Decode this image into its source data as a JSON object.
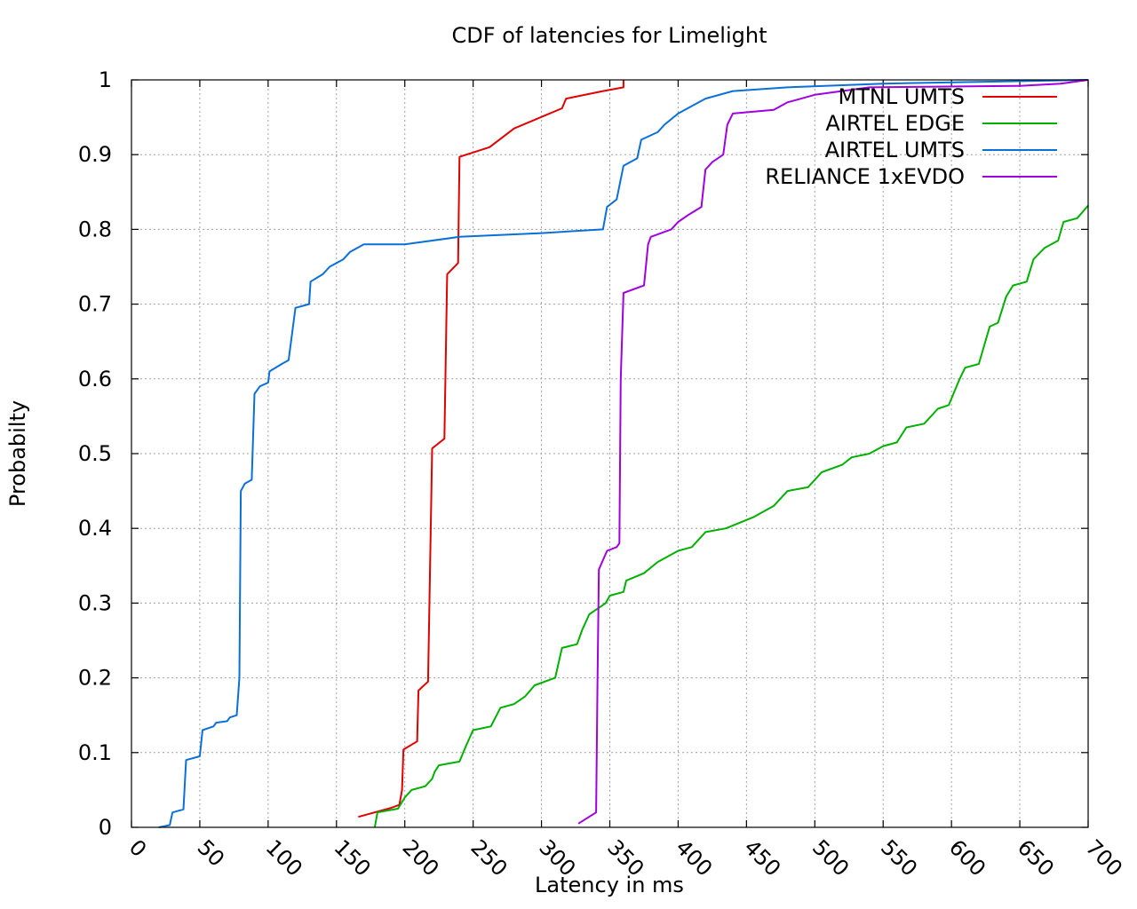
{
  "chart_data": {
    "type": "line",
    "title": "CDF of latencies for Limelight",
    "xlabel": "Latency in ms",
    "ylabel": "Probabilty",
    "xlim": [
      0,
      700
    ],
    "ylim": [
      0,
      1
    ],
    "xticks": [
      0,
      50,
      100,
      150,
      200,
      250,
      300,
      350,
      400,
      450,
      500,
      550,
      600,
      650,
      700
    ],
    "yticks": [
      0,
      0.1,
      0.2,
      0.3,
      0.4,
      0.5,
      0.6,
      0.7,
      0.8,
      0.9,
      1
    ],
    "xtick_labels": [
      "0",
      "50",
      "100",
      "150",
      "200",
      "250",
      "300",
      "350",
      "400",
      "450",
      "500",
      "550",
      "600",
      "650",
      "700"
    ],
    "ytick_labels": [
      "0",
      "0.1",
      "0.2",
      "0.3",
      "0.4",
      "0.5",
      "0.6",
      "0.7",
      "0.8",
      "0.9",
      "1"
    ],
    "grid": true,
    "legend_position": "top-right",
    "series": [
      {
        "name": "MTNL UMTS",
        "color": "#e00000",
        "points": [
          [
            166,
            0.014
          ],
          [
            190,
            0.026
          ],
          [
            196,
            0.03
          ],
          [
            198,
            0.05
          ],
          [
            199,
            0.104
          ],
          [
            209,
            0.115
          ],
          [
            210,
            0.183
          ],
          [
            217,
            0.195
          ],
          [
            220,
            0.507
          ],
          [
            229,
            0.52
          ],
          [
            231,
            0.74
          ],
          [
            239,
            0.755
          ],
          [
            240,
            0.897
          ],
          [
            262,
            0.91
          ],
          [
            280,
            0.935
          ],
          [
            315,
            0.962
          ],
          [
            318,
            0.975
          ],
          [
            345,
            0.985
          ],
          [
            360,
            0.99
          ],
          [
            360,
            1.0
          ]
        ]
      },
      {
        "name": "AIRTEL EDGE",
        "color": "#00b000",
        "points": [
          [
            178,
            0
          ],
          [
            180,
            0.02
          ],
          [
            195,
            0.025
          ],
          [
            200,
            0.04
          ],
          [
            205,
            0.05
          ],
          [
            215,
            0.055
          ],
          [
            220,
            0.065
          ],
          [
            222,
            0.075
          ],
          [
            225,
            0.083
          ],
          [
            240,
            0.088
          ],
          [
            245,
            0.11
          ],
          [
            250,
            0.13
          ],
          [
            263,
            0.135
          ],
          [
            270,
            0.16
          ],
          [
            280,
            0.165
          ],
          [
            288,
            0.175
          ],
          [
            295,
            0.19
          ],
          [
            310,
            0.2
          ],
          [
            315,
            0.24
          ],
          [
            326,
            0.245
          ],
          [
            330,
            0.265
          ],
          [
            335,
            0.285
          ],
          [
            347,
            0.3
          ],
          [
            350,
            0.31
          ],
          [
            360,
            0.315
          ],
          [
            362,
            0.33
          ],
          [
            375,
            0.34
          ],
          [
            385,
            0.355
          ],
          [
            400,
            0.37
          ],
          [
            410,
            0.375
          ],
          [
            420,
            0.395
          ],
          [
            435,
            0.4
          ],
          [
            455,
            0.415
          ],
          [
            470,
            0.43
          ],
          [
            480,
            0.45
          ],
          [
            495,
            0.455
          ],
          [
            505,
            0.475
          ],
          [
            520,
            0.485
          ],
          [
            527,
            0.495
          ],
          [
            540,
            0.5
          ],
          [
            550,
            0.51
          ],
          [
            560,
            0.515
          ],
          [
            567,
            0.535
          ],
          [
            580,
            0.54
          ],
          [
            590,
            0.56
          ],
          [
            598,
            0.565
          ],
          [
            606,
            0.6
          ],
          [
            610,
            0.615
          ],
          [
            620,
            0.62
          ],
          [
            628,
            0.67
          ],
          [
            634,
            0.675
          ],
          [
            640,
            0.71
          ],
          [
            645,
            0.725
          ],
          [
            655,
            0.73
          ],
          [
            660,
            0.76
          ],
          [
            668,
            0.775
          ],
          [
            678,
            0.785
          ],
          [
            682,
            0.81
          ],
          [
            692,
            0.815
          ],
          [
            700,
            0.832
          ]
        ]
      },
      {
        "name": "AIRTEL UMTS",
        "color": "#0a70d8",
        "points": [
          [
            20,
            0
          ],
          [
            28,
            0.003
          ],
          [
            30,
            0.02
          ],
          [
            38,
            0.024
          ],
          [
            40,
            0.09
          ],
          [
            50,
            0.095
          ],
          [
            52,
            0.13
          ],
          [
            60,
            0.135
          ],
          [
            62,
            0.14
          ],
          [
            70,
            0.142
          ],
          [
            72,
            0.147
          ],
          [
            77,
            0.15
          ],
          [
            79,
            0.2
          ],
          [
            80,
            0.45
          ],
          [
            83,
            0.46
          ],
          [
            88,
            0.465
          ],
          [
            90,
            0.58
          ],
          [
            94,
            0.59
          ],
          [
            100,
            0.595
          ],
          [
            101,
            0.61
          ],
          [
            110,
            0.62
          ],
          [
            115,
            0.625
          ],
          [
            120,
            0.695
          ],
          [
            130,
            0.7
          ],
          [
            131,
            0.73
          ],
          [
            140,
            0.74
          ],
          [
            145,
            0.75
          ],
          [
            155,
            0.76
          ],
          [
            160,
            0.77
          ],
          [
            170,
            0.78
          ],
          [
            200,
            0.78
          ],
          [
            240,
            0.79
          ],
          [
            300,
            0.795
          ],
          [
            345,
            0.8
          ],
          [
            348,
            0.83
          ],
          [
            355,
            0.84
          ],
          [
            360,
            0.885
          ],
          [
            370,
            0.895
          ],
          [
            373,
            0.92
          ],
          [
            385,
            0.93
          ],
          [
            390,
            0.94
          ],
          [
            400,
            0.955
          ],
          [
            410,
            0.965
          ],
          [
            420,
            0.975
          ],
          [
            440,
            0.985
          ],
          [
            480,
            0.99
          ],
          [
            550,
            0.995
          ],
          [
            700,
            1.0
          ]
        ]
      },
      {
        "name": "RELIANCE 1xEVDO",
        "color": "#a000e0",
        "points": [
          [
            327,
            0.005
          ],
          [
            340,
            0.02
          ],
          [
            341,
            0.2
          ],
          [
            342,
            0.345
          ],
          [
            348,
            0.37
          ],
          [
            355,
            0.375
          ],
          [
            357,
            0.38
          ],
          [
            358,
            0.6
          ],
          [
            360,
            0.715
          ],
          [
            375,
            0.725
          ],
          [
            378,
            0.78
          ],
          [
            380,
            0.79
          ],
          [
            395,
            0.8
          ],
          [
            400,
            0.81
          ],
          [
            408,
            0.82
          ],
          [
            417,
            0.83
          ],
          [
            420,
            0.88
          ],
          [
            425,
            0.89
          ],
          [
            433,
            0.9
          ],
          [
            436,
            0.94
          ],
          [
            440,
            0.955
          ],
          [
            470,
            0.96
          ],
          [
            480,
            0.97
          ],
          [
            500,
            0.98
          ],
          [
            540,
            0.99
          ],
          [
            650,
            0.992
          ],
          [
            680,
            0.995
          ],
          [
            700,
            1.0
          ]
        ]
      }
    ]
  }
}
